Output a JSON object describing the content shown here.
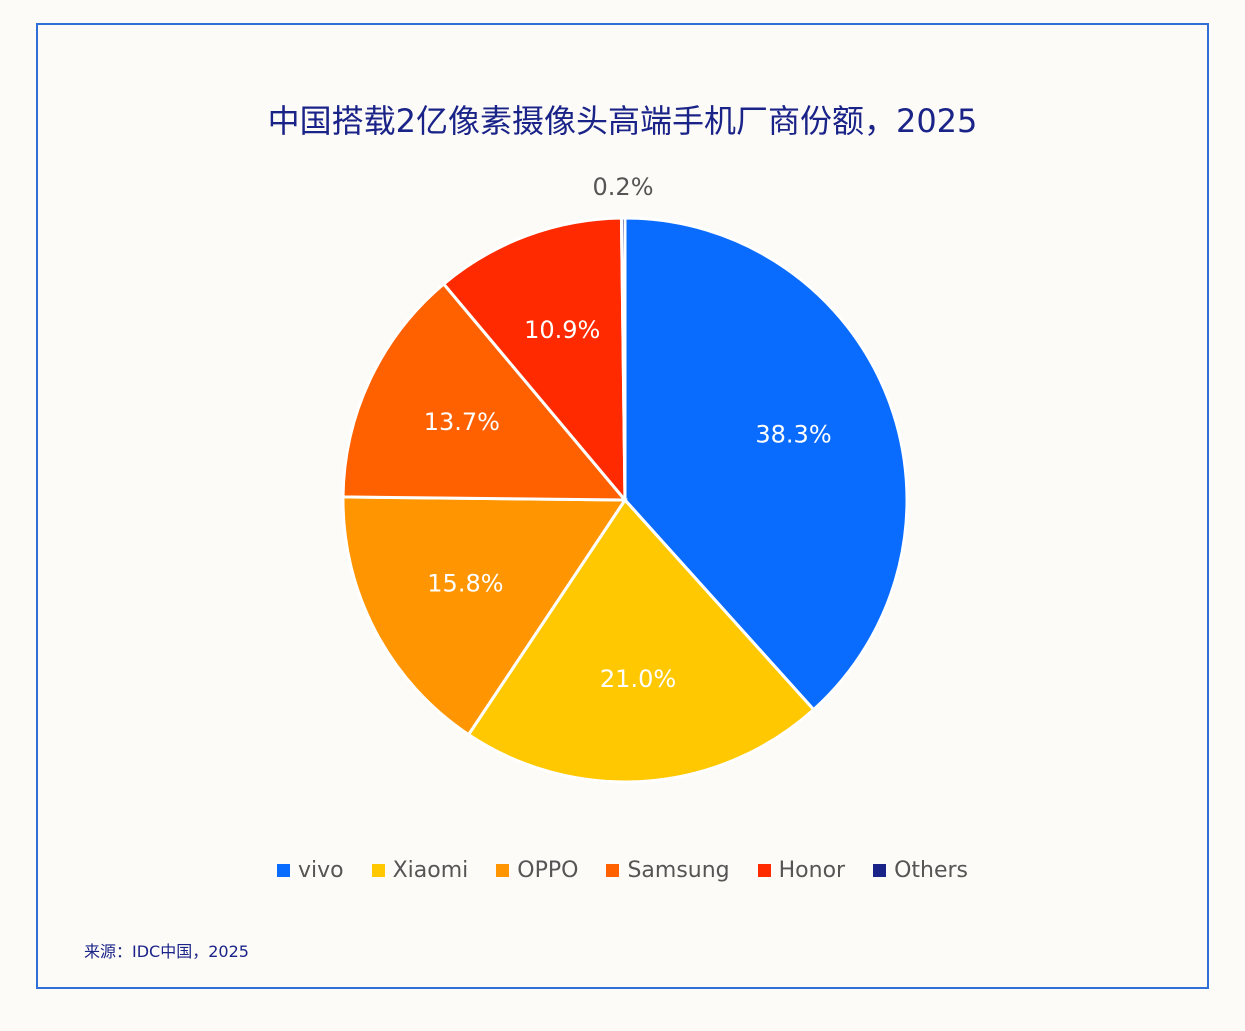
{
  "title": "中国搭载2亿像素摄像头高端手机厂商份额，2025",
  "source": "来源：IDC中国，2025",
  "chart_data": {
    "type": "pie",
    "title": "中国搭载2亿像素摄像头高端手机厂商份额，2025",
    "legend_position": "bottom",
    "start_angle": "top, clockwise",
    "slices": [
      {
        "name": "vivo",
        "value": 38.3,
        "label": "38.3%",
        "color": "#0a6cff"
      },
      {
        "name": "Xiaomi",
        "value": 21.0,
        "label": "21.0%",
        "color": "#ffc800"
      },
      {
        "name": "OPPO",
        "value": 15.8,
        "label": "15.8%",
        "color": "#ff9500"
      },
      {
        "name": "Samsung",
        "value": 13.7,
        "label": "13.7%",
        "color": "#ff6000"
      },
      {
        "name": "Honor",
        "value": 10.9,
        "label": "10.9%",
        "color": "#ff2a00"
      },
      {
        "name": "Others",
        "value": 0.2,
        "label": "0.2%",
        "color": "#1a2388"
      }
    ]
  }
}
